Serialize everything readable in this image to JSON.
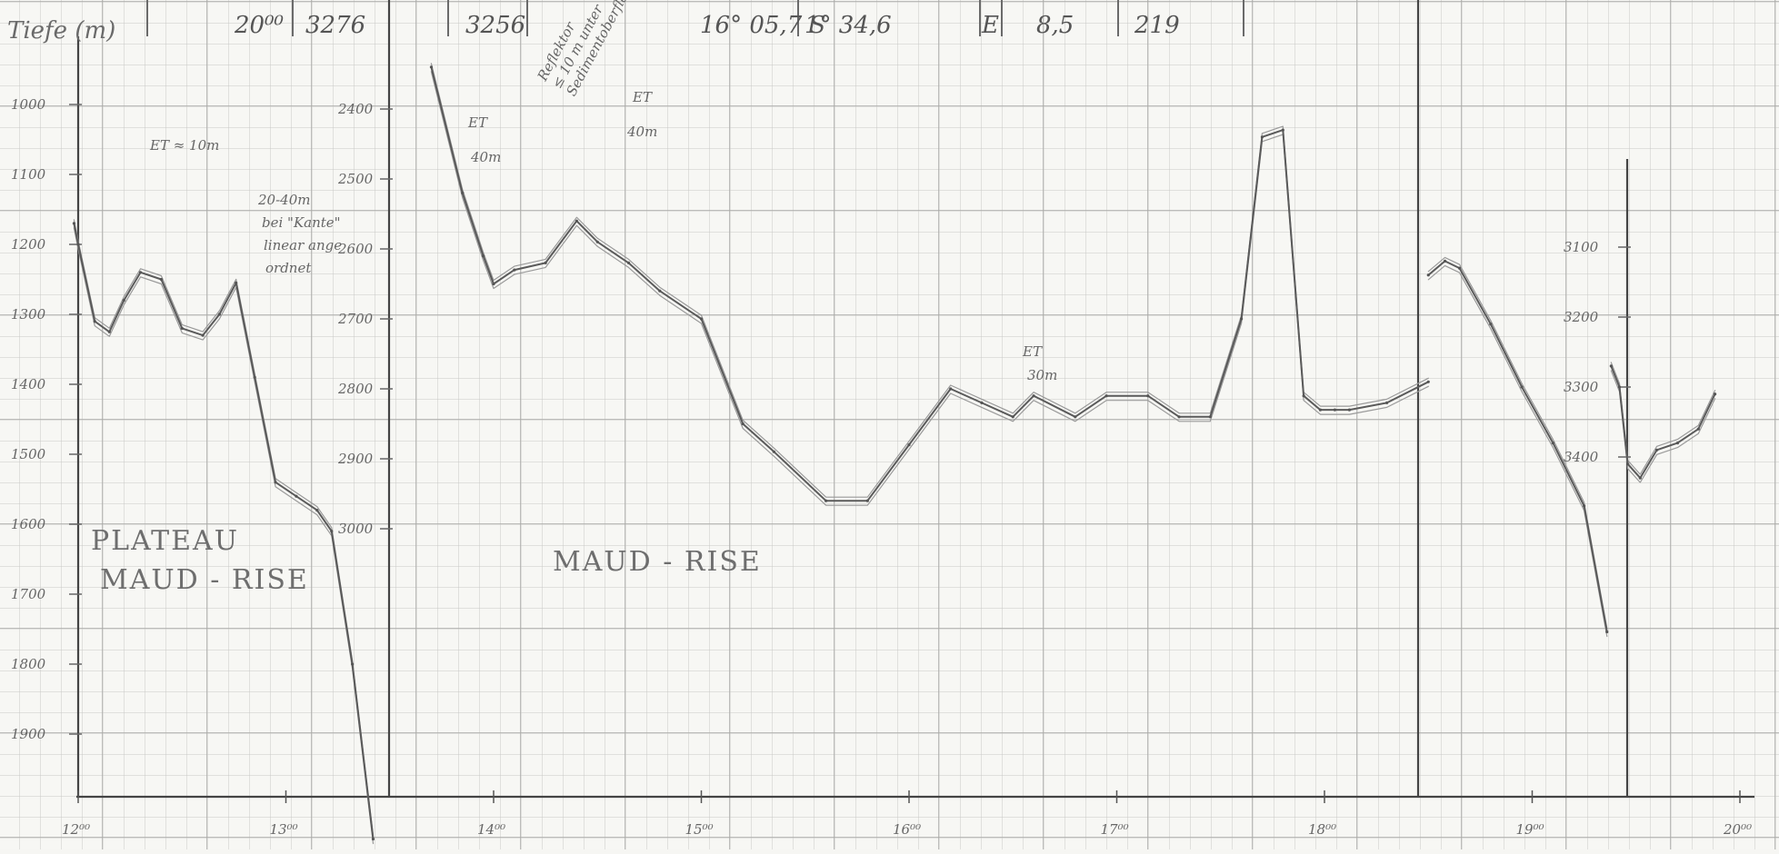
{
  "header": {
    "fields": [
      "20⁰⁰",
      "3276",
      "3256",
      "16° 05,7 S",
      "1° 34,6",
      "E",
      "8,5",
      "219"
    ]
  },
  "annotations": {
    "axis_title": "Tiefe (m)",
    "et_10": "ET ≈ 10m",
    "note_20_40": [
      "20-40m",
      "bei \"Kante\"",
      "linear ange",
      "ordnet"
    ],
    "et_40_a": [
      "ET",
      "40m"
    ],
    "reflektor": [
      "Reflektor",
      "≤ 10 m unter",
      "Sedimentoberfläche"
    ],
    "et_40_b": [
      "ET",
      "40m"
    ],
    "et_30": [
      "ET",
      "30m"
    ],
    "plateau": [
      "PLATEAU",
      "MAUD - RISE"
    ],
    "maud_rise": "MAUD - RISE"
  },
  "colors": {
    "paper": "#f7f7f4",
    "grid": "#b9b9b9",
    "pencil": "#5a5a5a"
  },
  "chart_data": [
    {
      "type": "line",
      "title": "",
      "ylabel": "Tiefe (m)",
      "y_ticks": [
        "1000",
        "1100",
        "1200",
        "1300",
        "1400",
        "1500",
        "1600",
        "1700",
        "1800",
        "1900"
      ],
      "ylim": [
        950,
        2060
      ],
      "x_ticks": [
        "12⁰⁰",
        "13⁰⁰"
      ],
      "series": [
        {
          "x": [
            11.98,
            12.0,
            12.08,
            12.15,
            12.22,
            12.3,
            12.4,
            12.5,
            12.6,
            12.68,
            12.76,
            12.85,
            12.95,
            13.05,
            13.15,
            13.22,
            13.32,
            13.42
          ],
          "y": [
            1170,
            1200,
            1310,
            1325,
            1280,
            1240,
            1250,
            1320,
            1330,
            1300,
            1255,
            1390,
            1540,
            1560,
            1580,
            1610,
            1800,
            2050
          ]
        }
      ]
    },
    {
      "type": "line",
      "title": "",
      "y_ticks": [
        "2400",
        "2500",
        "2600",
        "2700",
        "2800",
        "2900",
        "3000"
      ],
      "ylim": [
        2330,
        3000
      ],
      "x_ticks": [
        "14⁰⁰",
        "15⁰⁰",
        "16⁰⁰",
        "17⁰⁰",
        "18⁰⁰"
      ],
      "series": [
        {
          "x": [
            13.7,
            13.85,
            13.95,
            14.0,
            14.1,
            14.25,
            14.4,
            14.5,
            14.65,
            14.8,
            15.0,
            15.2,
            15.35,
            15.6,
            15.8,
            16.0,
            16.2,
            16.35,
            16.5,
            16.6,
            16.8,
            16.95,
            17.15,
            17.3,
            17.45,
            17.6,
            17.7,
            17.8,
            17.9,
            17.98,
            18.05,
            18.12,
            18.3,
            18.5
          ],
          "y": [
            2340,
            2520,
            2610,
            2650,
            2630,
            2620,
            2560,
            2590,
            2620,
            2660,
            2700,
            2850,
            2890,
            2960,
            2960,
            2880,
            2800,
            2820,
            2840,
            2810,
            2840,
            2810,
            2810,
            2840,
            2840,
            2700,
            2440,
            2430,
            2810,
            2830,
            2830,
            2830,
            2820,
            2790
          ]
        }
      ]
    },
    {
      "type": "line",
      "title": "",
      "y_ticks": [
        "3100",
        "3200",
        "3300",
        "3400"
      ],
      "ylim": [
        3000,
        3430
      ],
      "x_ticks": [
        "19⁰⁰",
        "20⁰⁰"
      ],
      "series": [
        {
          "x": [
            18.5,
            18.58,
            18.65,
            18.8,
            18.95,
            19.1,
            19.25,
            19.36
          ],
          "y": [
            3140,
            3120,
            3130,
            3210,
            3300,
            3380,
            3470,
            3650
          ]
        },
        {
          "x": [
            19.38,
            19.42,
            19.46,
            19.52,
            19.6,
            19.7,
            19.8,
            19.88
          ],
          "y": [
            3270,
            3300,
            3410,
            3430,
            3390,
            3380,
            3360,
            3310
          ]
        }
      ]
    }
  ]
}
